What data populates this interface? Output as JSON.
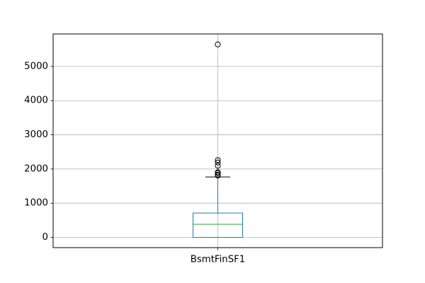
{
  "chart_data": {
    "type": "box",
    "title": "",
    "xlabel": "",
    "ylabel": "",
    "categories": [
      "BsmtFinSF1"
    ],
    "ylim": [
      -300,
      5950
    ],
    "yticks": [
      0,
      1000,
      2000,
      3000,
      4000,
      5000
    ],
    "ytick_labels": [
      "0",
      "1000",
      "2000",
      "3000",
      "4000",
      "5000"
    ],
    "grid": true,
    "box": {
      "whisker_low": 0,
      "q1": 0,
      "median": 383,
      "q3": 712,
      "whisker_high": 1767,
      "outliers": [
        1810,
        1836,
        1880,
        1904,
        2096,
        2188,
        2260,
        5644
      ]
    },
    "colors": {
      "box": "#1f77b4",
      "median": "#2ca02c",
      "whisker": "#1f77b4",
      "cap": "#000000",
      "outlier": "#000000",
      "grid": "#b0b0b0"
    }
  }
}
